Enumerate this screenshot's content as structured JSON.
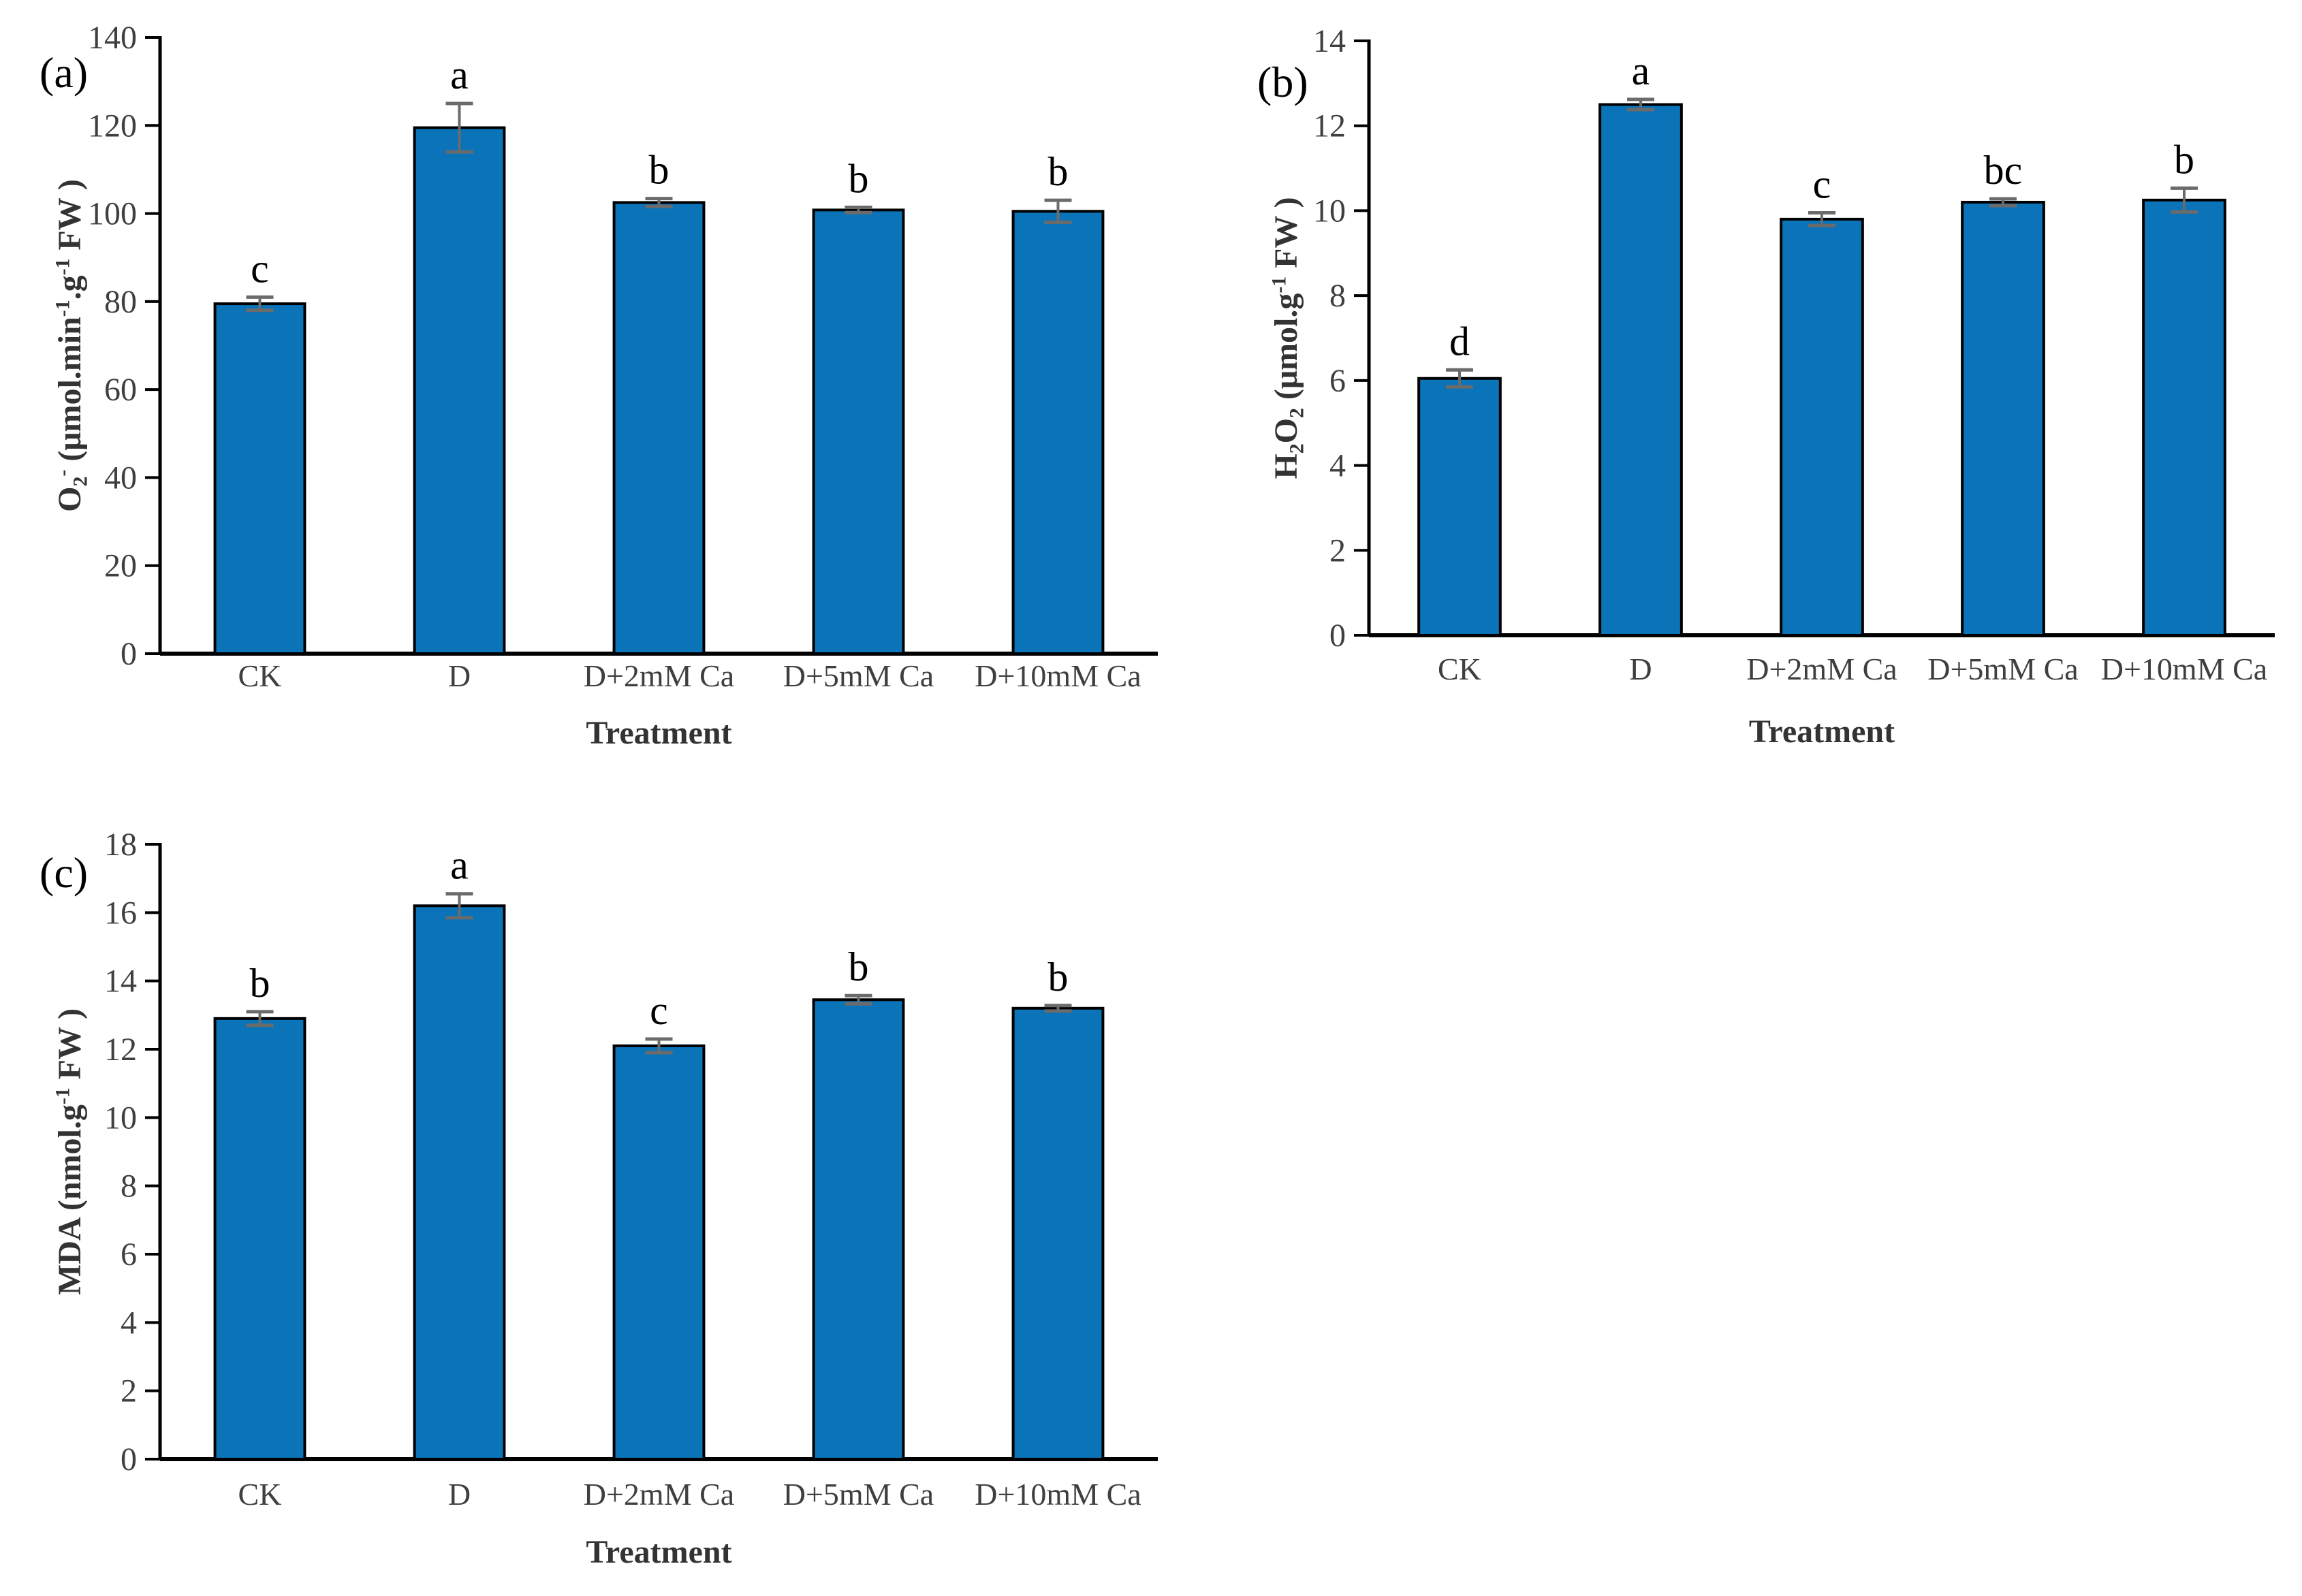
{
  "figure": {
    "background": "#ffffff"
  },
  "colors": {
    "bar_fill": "#0B74B8",
    "bar_border": "#000000",
    "error_bar": "#6B6B6B",
    "axis_line": "#000000",
    "tick_label": "#3F3F3F",
    "axis_title": "#333333",
    "sig_letter": "#000000",
    "panel_label": "#000000"
  },
  "chart_data": [
    {
      "id": "a",
      "type": "bar",
      "panel_label": "(a)",
      "xlabel": "Treatment",
      "ylabel_segments": [
        {
          "t": "O"
        },
        {
          "t": "2",
          "s": "sub"
        },
        {
          "t": "-",
          "s": "sup"
        },
        {
          "t": " (μmol.min"
        },
        {
          "t": "-1",
          "s": "sup"
        },
        {
          "t": ".g"
        },
        {
          "t": "-1",
          "s": "sup"
        },
        {
          "t": " FW )"
        }
      ],
      "categories": [
        "CK",
        "D",
        "D+2mM Ca",
        "D+5mM Ca",
        "D+10mM Ca"
      ],
      "values": [
        79.5,
        119.5,
        102.5,
        100.8,
        100.5
      ],
      "errors": [
        1.5,
        5.5,
        0.9,
        0.6,
        2.5
      ],
      "sig_letters": [
        "c",
        "a",
        "b",
        "b",
        "b"
      ],
      "ylim": [
        0,
        140
      ],
      "yticks": [
        0,
        20,
        40,
        60,
        80,
        100,
        120,
        140
      ],
      "grid": false,
      "legend": "none"
    },
    {
      "id": "b",
      "type": "bar",
      "panel_label": "(b)",
      "xlabel": "Treatment",
      "ylabel_segments": [
        {
          "t": "H"
        },
        {
          "t": "2",
          "s": "sub"
        },
        {
          "t": "O"
        },
        {
          "t": "2",
          "s": "sub"
        },
        {
          "t": " (μmol.g"
        },
        {
          "t": "-1",
          "s": "sup"
        },
        {
          "t": " FW )"
        }
      ],
      "categories": [
        "CK",
        "D",
        "D+2mM Ca",
        "D+5mM Ca",
        "D+10mM Ca"
      ],
      "values": [
        6.05,
        12.5,
        9.8,
        10.2,
        10.25
      ],
      "errors": [
        0.2,
        0.12,
        0.15,
        0.08,
        0.28
      ],
      "sig_letters": [
        "d",
        "a",
        "c",
        "bc",
        "b"
      ],
      "ylim": [
        0,
        14
      ],
      "yticks": [
        0,
        2,
        4,
        6,
        8,
        10,
        12,
        14
      ],
      "grid": false,
      "legend": "none"
    },
    {
      "id": "c",
      "type": "bar",
      "panel_label": "(c)",
      "xlabel": "Treatment",
      "ylabel_segments": [
        {
          "t": "MDA (nmol.g"
        },
        {
          "t": "-1",
          "s": "sup"
        },
        {
          "t": " FW )"
        }
      ],
      "categories": [
        "CK",
        "D",
        "D+2mM Ca",
        "D+5mM Ca",
        "D+10mM Ca"
      ],
      "values": [
        12.9,
        16.2,
        12.1,
        13.45,
        13.2
      ],
      "errors": [
        0.2,
        0.35,
        0.2,
        0.12,
        0.08
      ],
      "sig_letters": [
        "b",
        "a",
        "c",
        "b",
        "b"
      ],
      "ylim": [
        0,
        18
      ],
      "yticks": [
        0,
        2,
        4,
        6,
        8,
        10,
        12,
        14,
        16,
        18
      ],
      "grid": false,
      "legend": "none"
    }
  ]
}
